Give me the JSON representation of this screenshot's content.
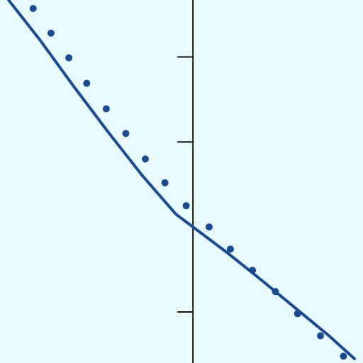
{
  "chart_data": {
    "type": "line",
    "title": "",
    "xlabel": "",
    "ylabel": "",
    "grid": false,
    "legend": "none",
    "xlim": [
      -2.27,
      2.0
    ],
    "ylim": [
      -1.6,
      2.67
    ],
    "y_ticks": [
      -1,
      1,
      2
    ],
    "colors": {
      "background": "#e8fbfd",
      "axis": "#111111",
      "series": "#1b4a8e"
    },
    "series": [
      {
        "kind": "line",
        "x": [
          -2.17,
          -1.8,
          -1.4,
          -1.0,
          -0.6,
          -0.2,
          0.0,
          0.4,
          0.8,
          1.2,
          1.6,
          1.9
        ],
        "y": [
          2.67,
          2.2,
          1.65,
          1.12,
          0.61,
          0.15,
          0.0,
          -0.3,
          -0.62,
          -0.95,
          -1.28,
          -1.55
        ]
      },
      {
        "kind": "scatter",
        "x": [
          -1.88,
          -1.67,
          -1.46,
          -1.25,
          -1.02,
          -0.79,
          -0.56,
          -0.33,
          -0.08,
          0.19,
          0.44,
          0.7,
          0.97,
          1.23,
          1.5,
          1.77
        ],
        "y": [
          2.57,
          2.28,
          1.99,
          1.69,
          1.39,
          1.1,
          0.8,
          0.52,
          0.25,
          0.0,
          -0.26,
          -0.51,
          -0.76,
          -1.02,
          -1.28,
          -1.52
        ]
      }
    ]
  }
}
